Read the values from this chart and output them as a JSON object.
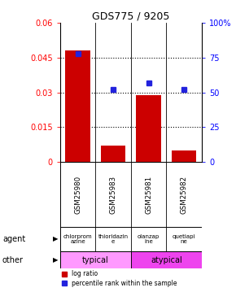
{
  "title": "GDS775 / 9205",
  "samples": [
    "GSM25980",
    "GSM25983",
    "GSM25981",
    "GSM25982"
  ],
  "log_ratio": [
    0.048,
    0.007,
    0.029,
    0.005
  ],
  "percentile_rank": [
    78,
    52,
    57,
    52
  ],
  "agents": [
    "chlorprom\nazine",
    "thioridazin\ne",
    "olanzap\nine",
    "quetiapi\nne"
  ],
  "other_groups": [
    {
      "label": "typical",
      "span": [
        0,
        2
      ]
    },
    {
      "label": "atypical",
      "span": [
        2,
        4
      ]
    }
  ],
  "ylim_left": [
    0,
    0.06
  ],
  "ylim_right": [
    0,
    100
  ],
  "yticks_left": [
    0,
    0.015,
    0.03,
    0.045,
    0.06
  ],
  "ytick_labels_left": [
    "0",
    "0.015",
    "0.03",
    "0.045",
    "0.06"
  ],
  "yticks_right": [
    0,
    25,
    50,
    75,
    100
  ],
  "ytick_labels_right": [
    "0",
    "25",
    "50",
    "75",
    "100%"
  ],
  "bar_color": "#cc0000",
  "dot_color": "#2222dd",
  "bg_color": "#ffffff",
  "agent_bg": "#99dd99",
  "other_color_1": "#ff99ff",
  "other_color_2": "#ee44ee",
  "sample_bg": "#cccccc"
}
